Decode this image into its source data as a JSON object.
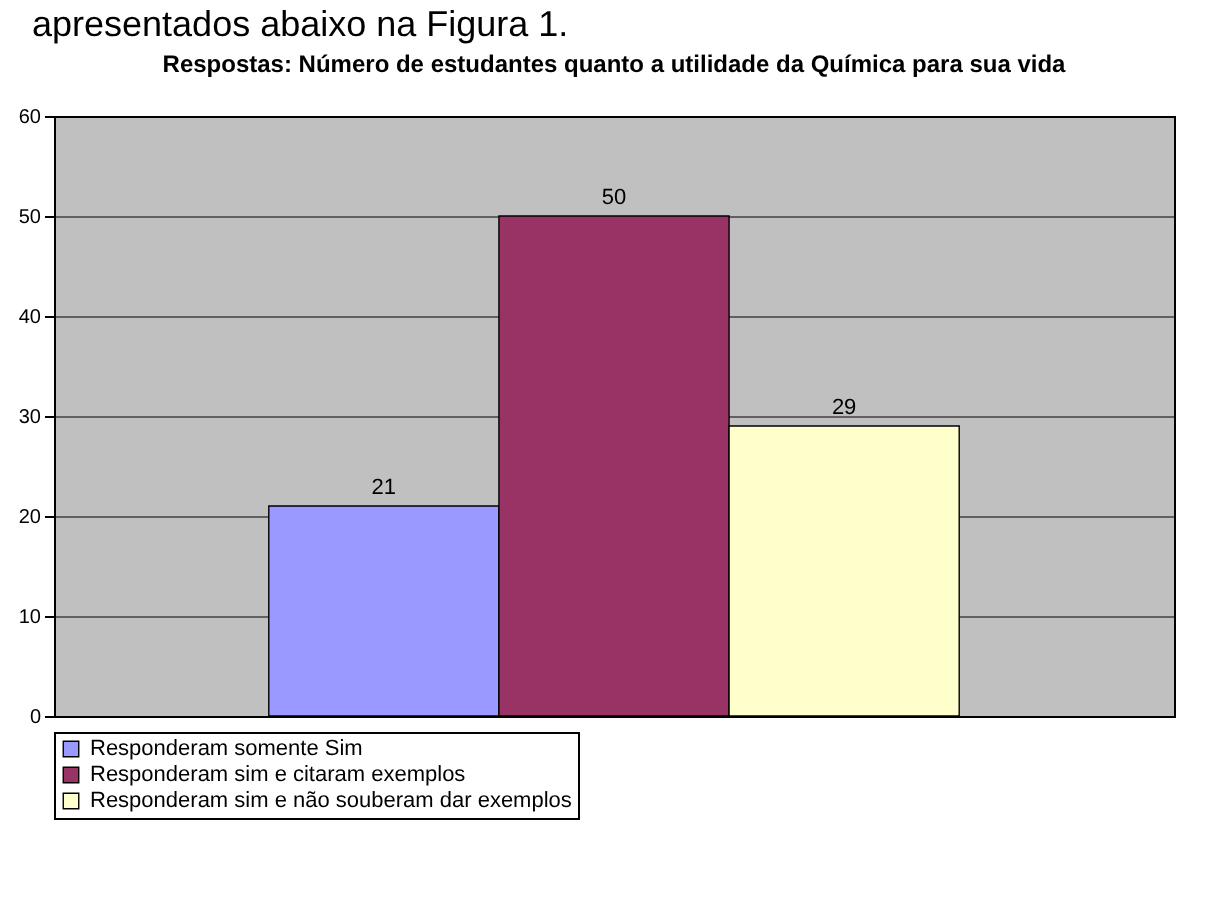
{
  "chart_data": {
    "type": "bar",
    "title": "Respostas: Número de estudantes quanto a utilidade da Química para sua vida",
    "annotations": [
      "apresentados abaixo na Figura 1."
    ],
    "categories": [
      null
    ],
    "series": [
      {
        "name": "Responderam somente Sim",
        "color": "#9999ff",
        "values": [
          21
        ]
      },
      {
        "name": "Responderam sim e citaram exemplos",
        "color": "#993366",
        "values": [
          50
        ]
      },
      {
        "name": "Responderam sim e não souberam dar exemplos",
        "color": "#ffffcc",
        "values": [
          29
        ]
      }
    ],
    "ylim": [
      0,
      60
    ],
    "yticks": [
      0,
      10,
      20,
      30,
      40,
      50,
      60
    ],
    "grid": "y",
    "legend": "bottom",
    "data_labels": true,
    "tick_labels": "y"
  }
}
